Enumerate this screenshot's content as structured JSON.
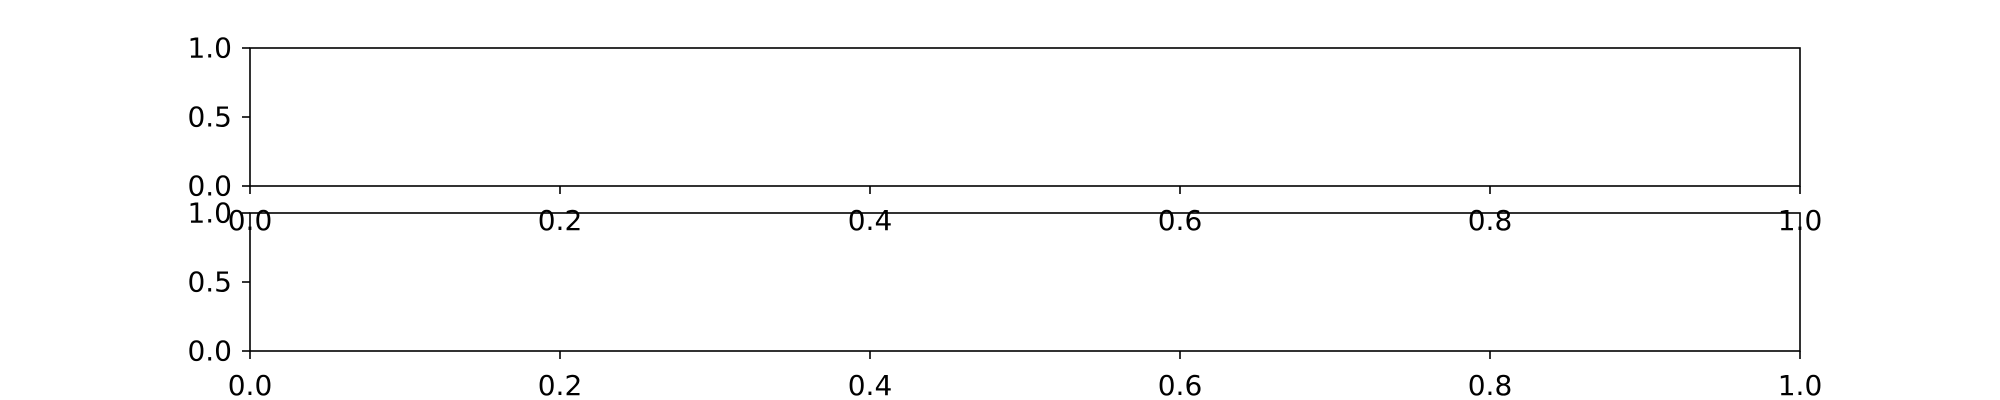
{
  "chart_data": [
    {
      "type": "line",
      "title": "",
      "xlabel": "",
      "ylabel": "",
      "xlim": [
        0.0,
        1.0
      ],
      "ylim": [
        0.0,
        1.0
      ],
      "x_ticks": [
        "0.0",
        "0.2",
        "0.4",
        "0.6",
        "0.8",
        "1.0"
      ],
      "y_ticks": [
        "0.0",
        "0.5",
        "1.0"
      ],
      "grid": false,
      "series": []
    },
    {
      "type": "line",
      "title": "",
      "xlabel": "",
      "ylabel": "",
      "xlim": [
        0.0,
        1.0
      ],
      "ylim": [
        0.0,
        1.0
      ],
      "x_ticks": [
        "0.0",
        "0.2",
        "0.4",
        "0.6",
        "0.8",
        "1.0"
      ],
      "y_ticks": [
        "0.0",
        "0.5",
        "1.0"
      ],
      "grid": false,
      "series": []
    }
  ]
}
